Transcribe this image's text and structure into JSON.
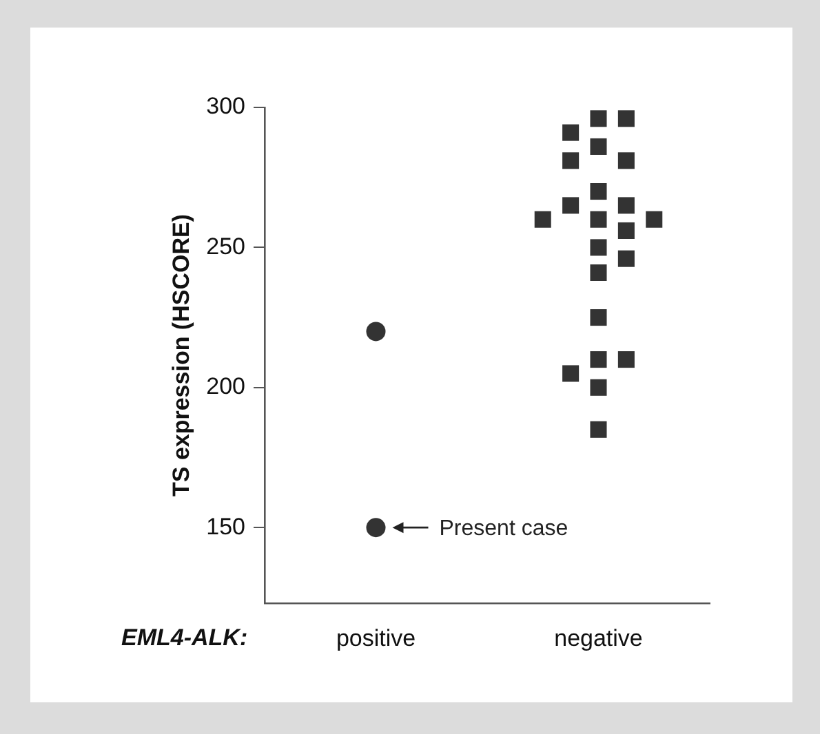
{
  "chart_data": {
    "type": "scatter",
    "ylabel": "TS expression (HSCORE)",
    "xlabel": "EML4-ALK:",
    "categories": [
      "positive",
      "negative"
    ],
    "ylim": [
      123,
      300
    ],
    "yticks": [
      150,
      200,
      250,
      300
    ],
    "grid": false,
    "legend": false,
    "series": [
      {
        "x": [
          "positive",
          "positive"
        ],
        "values": [
          220,
          150
        ],
        "color": "#333333",
        "marker": "circle"
      },
      {
        "x": [
          "negative",
          "negative",
          "negative",
          "negative",
          "negative",
          "negative",
          "negative",
          "negative",
          "negative",
          "negative",
          "negative",
          "negative",
          "negative",
          "negative",
          "negative",
          "negative",
          "negative",
          "negative",
          "negative",
          "negative",
          "negative",
          "negative"
        ],
        "values": [
          296,
          296,
          291,
          286,
          281,
          281,
          270,
          265,
          265,
          260,
          256,
          260,
          260,
          250,
          246,
          241,
          225,
          210,
          210,
          205,
          200,
          185
        ],
        "color": "#333333",
        "marker": "square"
      }
    ],
    "annotations": [
      {
        "text": "Present case",
        "x": "positive",
        "y": 150
      }
    ]
  }
}
